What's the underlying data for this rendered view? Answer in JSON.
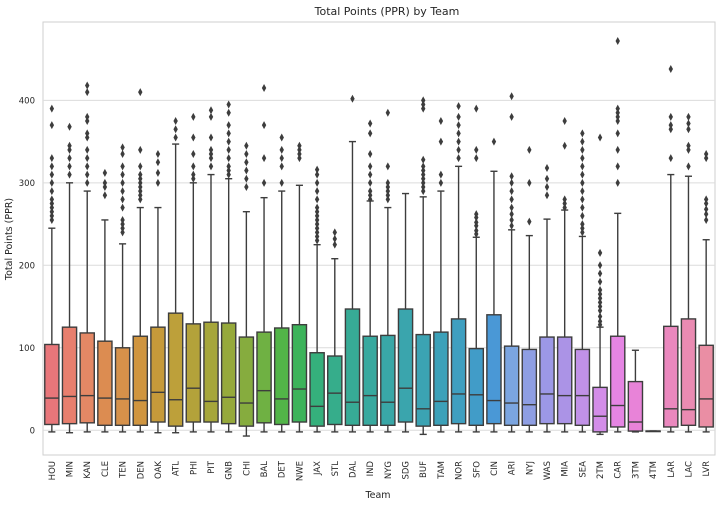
{
  "chart_data": {
    "type": "box",
    "title": "Total Points (PPR) by Team",
    "xlabel": "Team",
    "ylabel": "Total Points (PPR)",
    "ylim": [
      -30,
      495
    ],
    "yticks": [
      0,
      100,
      200,
      300,
      400
    ],
    "grid": "horizontal",
    "teams": [
      {
        "team": "HOU",
        "color": "#e8767a",
        "q1": 7,
        "median": 39,
        "q3": 104,
        "whisker_low": -2,
        "whisker_high": 245,
        "outliers": [
          255,
          260,
          265,
          270,
          275,
          280,
          290,
          300,
          310,
          320,
          330,
          370,
          390
        ]
      },
      {
        "team": "MIN",
        "color": "#e87f6e",
        "q1": 8,
        "median": 41,
        "q3": 125,
        "whisker_low": -3,
        "whisker_high": 300,
        "outliers": [
          310,
          320,
          330,
          340,
          345,
          368
        ]
      },
      {
        "team": "KAN",
        "color": "#e48865",
        "q1": 9,
        "median": 42,
        "q3": 118,
        "whisker_low": -2,
        "whisker_high": 290,
        "outliers": [
          300,
          310,
          320,
          330,
          340,
          355,
          360,
          375,
          380,
          410,
          418
        ]
      },
      {
        "team": "CLE",
        "color": "#dc8c51",
        "q1": 6,
        "median": 39,
        "q3": 108,
        "whisker_low": -2,
        "whisker_high": 255,
        "outliers": [
          285,
          295,
          300,
          312
        ]
      },
      {
        "team": "TEN",
        "color": "#d6914a",
        "q1": 6,
        "median": 38,
        "q3": 100,
        "whisker_low": -2,
        "whisker_high": 226,
        "outliers": [
          240,
          245,
          250,
          255,
          270,
          280,
          290,
          300,
          310,
          320,
          335,
          343
        ]
      },
      {
        "team": "DEN",
        "color": "#d0953f",
        "q1": 6,
        "median": 36,
        "q3": 114,
        "whisker_low": -2,
        "whisker_high": 270,
        "outliers": [
          280,
          285,
          290,
          295,
          300,
          305,
          310,
          320,
          340,
          410
        ]
      },
      {
        "team": "OAK",
        "color": "#c69a3a",
        "q1": 10,
        "median": 46,
        "q3": 125,
        "whisker_low": -3,
        "whisker_high": 270,
        "outliers": [
          300,
          312,
          325,
          335
        ]
      },
      {
        "team": "ATL",
        "color": "#bda03a",
        "q1": 5,
        "median": 37,
        "q3": 142,
        "whisker_low": -3,
        "whisker_high": 347,
        "outliers": [
          355,
          365,
          375
        ]
      },
      {
        "team": "PHI",
        "color": "#b3a23a",
        "q1": 10,
        "median": 51,
        "q3": 129,
        "whisker_low": -2,
        "whisker_high": 300,
        "outliers": [
          305,
          310,
          320,
          335,
          355,
          380
        ]
      },
      {
        "team": "PIT",
        "color": "#a6a63b",
        "q1": 10,
        "median": 35,
        "q3": 131,
        "whisker_low": -2,
        "whisker_high": 310,
        "outliers": [
          320,
          330,
          335,
          340,
          355,
          380,
          388
        ]
      },
      {
        "team": "GNB",
        "color": "#96a93b",
        "q1": 8,
        "median": 40,
        "q3": 130,
        "whisker_low": -2,
        "whisker_high": 305,
        "outliers": [
          310,
          315,
          320,
          330,
          340,
          350,
          360,
          370,
          385,
          395
        ]
      },
      {
        "team": "CHI",
        "color": "#86ac3e",
        "q1": 5,
        "median": 33,
        "q3": 113,
        "whisker_low": -7,
        "whisker_high": 265,
        "outliers": [
          295,
          305,
          315,
          325,
          335,
          345
        ]
      },
      {
        "team": "BAL",
        "color": "#6fb143",
        "q1": 9,
        "median": 48,
        "q3": 119,
        "whisker_low": -2,
        "whisker_high": 282,
        "outliers": [
          300,
          330,
          370,
          415
        ]
      },
      {
        "team": "DET",
        "color": "#52b548",
        "q1": 7,
        "median": 38,
        "q3": 124,
        "whisker_low": -2,
        "whisker_high": 290,
        "outliers": [
          300,
          320,
          330,
          340,
          355
        ]
      },
      {
        "team": "NWE",
        "color": "#3cb35a",
        "q1": 10,
        "median": 50,
        "q3": 128,
        "whisker_low": -2,
        "whisker_high": 297,
        "outliers": [
          330,
          335,
          340,
          345
        ]
      },
      {
        "team": "JAX",
        "color": "#35b07c",
        "q1": 5,
        "median": 29,
        "q3": 94,
        "whisker_low": -2,
        "whisker_high": 225,
        "outliers": [
          230,
          235,
          240,
          245,
          250,
          255,
          260,
          265,
          270,
          280,
          290,
          300,
          310,
          316
        ]
      },
      {
        "team": "STL",
        "color": "#36ad8b",
        "q1": 7,
        "median": 45,
        "q3": 90,
        "whisker_low": -2,
        "whisker_high": 208,
        "outliers": [
          225,
          232,
          240
        ]
      },
      {
        "team": "DAL",
        "color": "#37ab96",
        "q1": 6,
        "median": 34,
        "q3": 147,
        "whisker_low": -2,
        "whisker_high": 350,
        "outliers": [
          402
        ]
      },
      {
        "team": "IND",
        "color": "#38a99f",
        "q1": 6,
        "median": 42,
        "q3": 114,
        "whisker_low": -2,
        "whisker_high": 278,
        "outliers": [
          280,
          285,
          290,
          300,
          310,
          320,
          335,
          360,
          372
        ]
      },
      {
        "team": "NYG",
        "color": "#39a7a7",
        "q1": 6,
        "median": 34,
        "q3": 115,
        "whisker_low": -2,
        "whisker_high": 270,
        "outliers": [
          280,
          285,
          290,
          295,
          300,
          320,
          385
        ]
      },
      {
        "team": "SDG",
        "color": "#3aa5ad",
        "q1": 10,
        "median": 51,
        "q3": 147,
        "whisker_low": -2,
        "whisker_high": 287,
        "outliers": []
      },
      {
        "team": "BUF",
        "color": "#3ba3b3",
        "q1": 5,
        "median": 26,
        "q3": 116,
        "whisker_low": -5,
        "whisker_high": 283,
        "outliers": [
          290,
          295,
          300,
          305,
          310,
          315,
          320,
          328,
          390,
          395,
          400
        ]
      },
      {
        "team": "TAM",
        "color": "#3ca1b9",
        "q1": 6,
        "median": 35,
        "q3": 119,
        "whisker_low": -2,
        "whisker_high": 290,
        "outliers": [
          300,
          310,
          350,
          375
        ]
      },
      {
        "team": "NOR",
        "color": "#3e9fc0",
        "q1": 8,
        "median": 44,
        "q3": 135,
        "whisker_low": -2,
        "whisker_high": 320,
        "outliers": [
          330,
          340,
          350,
          360,
          370,
          380,
          393
        ]
      },
      {
        "team": "SFO",
        "color": "#419cc8",
        "q1": 6,
        "median": 43,
        "q3": 99,
        "whisker_low": -2,
        "whisker_high": 234,
        "outliers": [
          238,
          242,
          248,
          252,
          258,
          262,
          330,
          340,
          390
        ]
      },
      {
        "team": "CIN",
        "color": "#4a98d6",
        "q1": 8,
        "median": 36,
        "q3": 140,
        "whisker_low": -2,
        "whisker_high": 314,
        "outliers": [
          350
        ]
      },
      {
        "team": "ARI",
        "color": "#7ba5e0",
        "q1": 6,
        "median": 33,
        "q3": 102,
        "whisker_low": -2,
        "whisker_high": 243,
        "outliers": [
          248,
          255,
          262,
          270,
          280,
          290,
          300,
          308,
          380,
          405
        ]
      },
      {
        "team": "NYJ",
        "color": "#8e9ee3",
        "q1": 6,
        "median": 31,
        "q3": 98,
        "whisker_low": -2,
        "whisker_high": 236,
        "outliers": [
          253,
          300,
          340
        ]
      },
      {
        "team": "WAS",
        "color": "#9c98e6",
        "q1": 8,
        "median": 44,
        "q3": 113,
        "whisker_low": -2,
        "whisker_high": 256,
        "outliers": [
          285,
          295,
          305,
          318
        ]
      },
      {
        "team": "MIA",
        "color": "#ab93e6",
        "q1": 8,
        "median": 42,
        "q3": 113,
        "whisker_low": -2,
        "whisker_high": 267,
        "outliers": [
          270,
          275,
          280,
          345,
          375
        ]
      },
      {
        "team": "SEA",
        "color": "#c191e7",
        "q1": 6,
        "median": 42,
        "q3": 98,
        "whisker_low": -2,
        "whisker_high": 235,
        "outliers": [
          240,
          245,
          250,
          260,
          270,
          280,
          290,
          300,
          310,
          320,
          330,
          340,
          350,
          360
        ]
      },
      {
        "team": "2TM",
        "color": "#d38de8",
        "q1": -2,
        "median": 17,
        "q3": 52,
        "whisker_low": -5,
        "whisker_high": 125,
        "outliers": [
          128,
          132,
          138,
          145,
          150,
          155,
          160,
          165,
          170,
          180,
          190,
          200,
          215,
          355
        ]
      },
      {
        "team": "CAR",
        "color": "#e585e3",
        "q1": 4,
        "median": 30,
        "q3": 114,
        "whisker_low": -2,
        "whisker_high": 263,
        "outliers": [
          300,
          320,
          340,
          360,
          375,
          380,
          385,
          390,
          472
        ]
      },
      {
        "team": "3TM",
        "color": "#e883d8",
        "q1": -1,
        "median": 10,
        "q3": 59,
        "whisker_low": -2,
        "whisker_high": 97,
        "outliers": []
      },
      {
        "team": "4TM",
        "color": "#e985cc",
        "q1": -1,
        "median": -1,
        "q3": -1,
        "whisker_low": -1,
        "whisker_high": -1,
        "outliers": []
      },
      {
        "team": "LAR",
        "color": "#ea88be",
        "q1": 4,
        "median": 26,
        "q3": 126,
        "whisker_low": -2,
        "whisker_high": 310,
        "outliers": [
          330,
          365,
          370,
          380,
          438
        ]
      },
      {
        "team": "LAC",
        "color": "#ea8bb2",
        "q1": 6,
        "median": 25,
        "q3": 135,
        "whisker_low": -2,
        "whisker_high": 308,
        "outliers": [
          320,
          340,
          345,
          365,
          372,
          380
        ]
      },
      {
        "team": "LVR",
        "color": "#ea8ea4",
        "q1": 4,
        "median": 38,
        "q3": 103,
        "whisker_low": -2,
        "whisker_high": 231,
        "outliers": [
          255,
          262,
          268,
          275,
          280,
          330,
          335
        ]
      }
    ]
  }
}
